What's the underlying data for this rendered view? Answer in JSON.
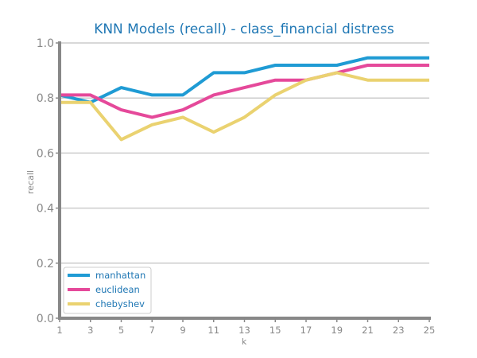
{
  "chart_data": {
    "type": "line",
    "title": "KNN Models (recall) - class_financial distress",
    "xlabel": "k",
    "ylabel": "recall",
    "x": [
      1,
      3,
      5,
      7,
      9,
      11,
      13,
      15,
      17,
      19,
      21,
      23,
      25
    ],
    "xticks": [
      "1",
      "3",
      "5",
      "7",
      "9",
      "11",
      "13",
      "15",
      "17",
      "19",
      "21",
      "23",
      "25"
    ],
    "yticks": [
      "0.0",
      "0.2",
      "0.4",
      "0.6",
      "0.8",
      "1.0"
    ],
    "xlim": [
      1,
      25
    ],
    "ylim": [
      0,
      1
    ],
    "grid": "horizontal",
    "legend_position": "bottom-left",
    "series": [
      {
        "name": "manhattan",
        "color": "#1f9bd4",
        "values": [
          0.811,
          0.784,
          0.838,
          0.811,
          0.811,
          0.892,
          0.892,
          0.919,
          0.919,
          0.919,
          0.946,
          0.946,
          0.946
        ]
      },
      {
        "name": "euclidean",
        "color": "#e5499a",
        "values": [
          0.811,
          0.811,
          0.757,
          0.73,
          0.757,
          0.811,
          0.838,
          0.865,
          0.865,
          0.892,
          0.919,
          0.919,
          0.919
        ]
      },
      {
        "name": "chebyshev",
        "color": "#ead270",
        "values": [
          0.784,
          0.784,
          0.649,
          0.703,
          0.73,
          0.676,
          0.73,
          0.811,
          0.865,
          0.892,
          0.865,
          0.865,
          0.865
        ]
      }
    ]
  }
}
